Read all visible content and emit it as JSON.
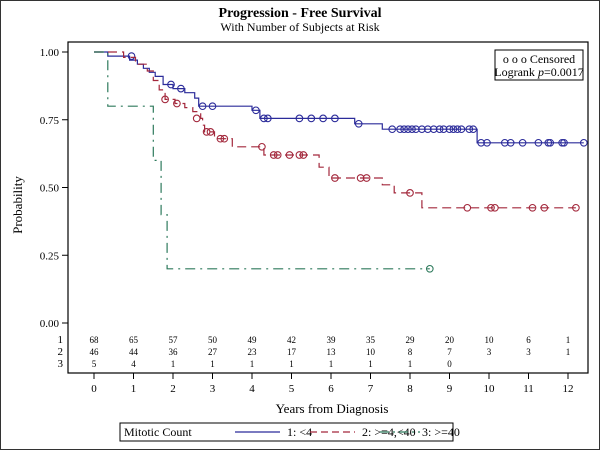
{
  "chart_data": {
    "type": "line",
    "title": "Progression - Free Survival",
    "subtitle": "With Number of Subjects at Risk",
    "xlabel": "Years from Diagnosis",
    "ylabel": "Probability",
    "xlim": [
      0,
      12.5
    ],
    "ylim": [
      0,
      1
    ],
    "x_ticks": [
      "0",
      "1",
      "2",
      "3",
      "4",
      "5",
      "6",
      "7",
      "8",
      "9",
      "10",
      "11",
      "12"
    ],
    "y_ticks": [
      "0.00",
      "0.25",
      "0.50",
      "0.75",
      "1.00"
    ],
    "grid": false,
    "inset": {
      "censored_label": "o o o Censored",
      "logrank_label": "Logrank ",
      "logrank_p_symbol": "p",
      "logrank_value": "=0.0017"
    },
    "legend": {
      "position": "bottom",
      "title": "Mitotic Count",
      "entries": [
        "1: <4",
        "2: >=4,<40",
        "3: >=40"
      ]
    },
    "at_risk": {
      "times": [
        0,
        1,
        2,
        3,
        4,
        5,
        6,
        7,
        8,
        9,
        10,
        11,
        12
      ],
      "rows": [
        {
          "label": "1",
          "values": [
            "68",
            "65",
            "57",
            "50",
            "49",
            "42",
            "39",
            "35",
            "29",
            "20",
            "10",
            "6",
            "1"
          ]
        },
        {
          "label": "2",
          "values": [
            "46",
            "44",
            "36",
            "27",
            "23",
            "17",
            "13",
            "10",
            "8",
            "7",
            "3",
            "3",
            "1"
          ]
        },
        {
          "label": "3",
          "values": [
            "5",
            "4",
            "1",
            "1",
            "1",
            "1",
            "1",
            "1",
            "1",
            "0",
            "",
            "",
            ""
          ]
        }
      ]
    },
    "series": [
      {
        "name": "1: <4",
        "color": "#2b2b9a",
        "dash": "solid",
        "steps": [
          [
            0,
            1.0
          ],
          [
            0.35,
            1.0
          ],
          [
            0.35,
            0.985
          ],
          [
            0.9,
            0.985
          ],
          [
            0.9,
            0.97
          ],
          [
            1.1,
            0.97
          ],
          [
            1.1,
            0.955
          ],
          [
            1.25,
            0.955
          ],
          [
            1.25,
            0.94
          ],
          [
            1.4,
            0.94
          ],
          [
            1.4,
            0.925
          ],
          [
            1.55,
            0.925
          ],
          [
            1.55,
            0.91
          ],
          [
            1.75,
            0.91
          ],
          [
            1.75,
            0.88
          ],
          [
            2.0,
            0.88
          ],
          [
            2.0,
            0.865
          ],
          [
            2.3,
            0.865
          ],
          [
            2.3,
            0.85
          ],
          [
            2.55,
            0.85
          ],
          [
            2.55,
            0.83
          ],
          [
            2.65,
            0.83
          ],
          [
            2.65,
            0.8
          ],
          [
            4.0,
            0.8
          ],
          [
            4.0,
            0.785
          ],
          [
            4.2,
            0.785
          ],
          [
            4.2,
            0.755
          ],
          [
            6.6,
            0.755
          ],
          [
            6.6,
            0.735
          ],
          [
            7.3,
            0.735
          ],
          [
            7.3,
            0.715
          ],
          [
            9.7,
            0.715
          ],
          [
            9.7,
            0.665
          ],
          [
            12.4,
            0.665
          ]
        ],
        "censored": [
          [
            0.95,
            0.985
          ],
          [
            1.95,
            0.88
          ],
          [
            2.2,
            0.865
          ],
          [
            2.75,
            0.8
          ],
          [
            3.0,
            0.8
          ],
          [
            4.1,
            0.785
          ],
          [
            4.3,
            0.755
          ],
          [
            4.4,
            0.755
          ],
          [
            5.2,
            0.755
          ],
          [
            5.5,
            0.755
          ],
          [
            5.8,
            0.755
          ],
          [
            6.1,
            0.755
          ],
          [
            6.7,
            0.735
          ],
          [
            7.55,
            0.715
          ],
          [
            7.75,
            0.715
          ],
          [
            7.85,
            0.715
          ],
          [
            7.95,
            0.715
          ],
          [
            8.05,
            0.715
          ],
          [
            8.15,
            0.715
          ],
          [
            8.3,
            0.715
          ],
          [
            8.45,
            0.715
          ],
          [
            8.6,
            0.715
          ],
          [
            8.75,
            0.715
          ],
          [
            8.85,
            0.715
          ],
          [
            9.0,
            0.715
          ],
          [
            9.1,
            0.715
          ],
          [
            9.2,
            0.715
          ],
          [
            9.3,
            0.715
          ],
          [
            9.5,
            0.715
          ],
          [
            9.6,
            0.715
          ],
          [
            9.8,
            0.665
          ],
          [
            9.95,
            0.665
          ],
          [
            10.4,
            0.665
          ],
          [
            10.55,
            0.665
          ],
          [
            10.85,
            0.665
          ],
          [
            11.25,
            0.665
          ],
          [
            11.5,
            0.665
          ],
          [
            11.55,
            0.665
          ],
          [
            11.85,
            0.665
          ],
          [
            11.9,
            0.665
          ],
          [
            12.4,
            0.665
          ]
        ]
      },
      {
        "name": "2: >=4,<40",
        "color": "#a3283c",
        "dash": "dashed",
        "steps": [
          [
            0,
            1.0
          ],
          [
            0.75,
            1.0
          ],
          [
            0.75,
            0.98
          ],
          [
            1.05,
            0.98
          ],
          [
            1.05,
            0.955
          ],
          [
            1.35,
            0.955
          ],
          [
            1.35,
            0.93
          ],
          [
            1.5,
            0.93
          ],
          [
            1.5,
            0.895
          ],
          [
            1.65,
            0.895
          ],
          [
            1.65,
            0.86
          ],
          [
            1.8,
            0.86
          ],
          [
            1.8,
            0.825
          ],
          [
            2.05,
            0.825
          ],
          [
            2.05,
            0.81
          ],
          [
            2.3,
            0.81
          ],
          [
            2.3,
            0.795
          ],
          [
            2.5,
            0.795
          ],
          [
            2.5,
            0.78
          ],
          [
            2.7,
            0.78
          ],
          [
            2.7,
            0.755
          ],
          [
            2.75,
            0.755
          ],
          [
            2.75,
            0.73
          ],
          [
            2.8,
            0.73
          ],
          [
            2.8,
            0.705
          ],
          [
            3.05,
            0.705
          ],
          [
            3.05,
            0.68
          ],
          [
            3.5,
            0.68
          ],
          [
            3.5,
            0.65
          ],
          [
            4.3,
            0.65
          ],
          [
            4.3,
            0.62
          ],
          [
            5.7,
            0.62
          ],
          [
            5.7,
            0.575
          ],
          [
            5.95,
            0.575
          ],
          [
            5.95,
            0.535
          ],
          [
            7.3,
            0.535
          ],
          [
            7.3,
            0.51
          ],
          [
            7.6,
            0.51
          ],
          [
            7.6,
            0.48
          ],
          [
            8.3,
            0.48
          ],
          [
            8.3,
            0.425
          ],
          [
            12.2,
            0.425
          ]
        ],
        "censored": [
          [
            1.8,
            0.825
          ],
          [
            2.1,
            0.81
          ],
          [
            2.6,
            0.755
          ],
          [
            2.85,
            0.705
          ],
          [
            2.95,
            0.705
          ],
          [
            3.2,
            0.68
          ],
          [
            3.3,
            0.68
          ],
          [
            4.25,
            0.65
          ],
          [
            4.55,
            0.62
          ],
          [
            4.65,
            0.62
          ],
          [
            4.95,
            0.62
          ],
          [
            5.2,
            0.62
          ],
          [
            5.3,
            0.62
          ],
          [
            6.1,
            0.535
          ],
          [
            6.75,
            0.535
          ],
          [
            6.9,
            0.535
          ],
          [
            8.0,
            0.48
          ],
          [
            9.45,
            0.425
          ],
          [
            10.05,
            0.425
          ],
          [
            10.15,
            0.425
          ],
          [
            11.1,
            0.425
          ],
          [
            11.4,
            0.425
          ],
          [
            12.2,
            0.425
          ]
        ]
      },
      {
        "name": "3: >=40",
        "color": "#2e7a5c",
        "dash": "dashdot",
        "steps": [
          [
            0,
            1.0
          ],
          [
            0.35,
            1.0
          ],
          [
            0.35,
            0.8
          ],
          [
            1.5,
            0.8
          ],
          [
            1.5,
            0.6
          ],
          [
            1.7,
            0.6
          ],
          [
            1.7,
            0.4
          ],
          [
            1.85,
            0.4
          ],
          [
            1.85,
            0.2
          ],
          [
            8.5,
            0.2
          ]
        ],
        "censored": [
          [
            8.5,
            0.2
          ]
        ]
      }
    ]
  }
}
